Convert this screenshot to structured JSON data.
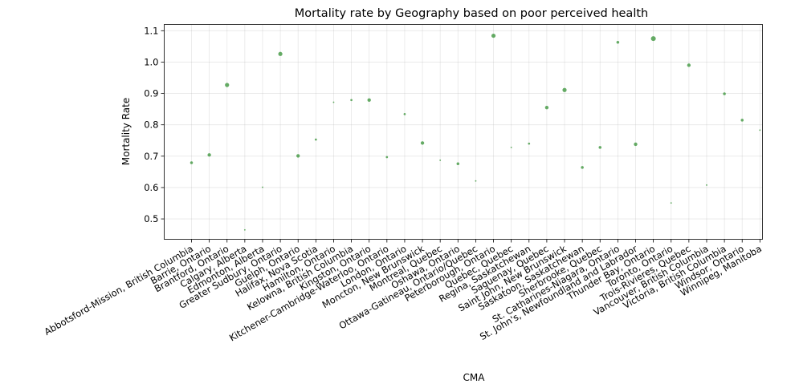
{
  "chart_data": {
    "type": "scatter",
    "title": "Mortality rate by Geography based on poor perceived health",
    "xlabel": "CMA",
    "ylabel": "Mortality Rate",
    "ylim": [
      0.435,
      1.12
    ],
    "yticks": [
      0.5,
      0.6,
      0.7,
      0.8,
      0.9,
      1.0,
      1.1
    ],
    "ytick_labels": [
      "0.5",
      "0.6",
      "0.7",
      "0.8",
      "0.9",
      "1.0",
      "1.1"
    ],
    "grid": true,
    "color": "#4a9c4a",
    "categories": [
      "Abbotsford-Mission, British Columbia",
      "Barrie, Ontario",
      "Brantford, Ontario",
      "Calgary, Alberta",
      "Edmonton, Alberta",
      "Greater Sudbury, Ontario",
      "Guelph, Ontario",
      "Halifax, Nova Scotia",
      "Hamilton, Ontario",
      "Kelowna, British Columbia",
      "Kingston, Ontario",
      "Kitchener-Cambridge-Waterloo, Ontario",
      "London, Ontario",
      "Moncton, New Brunswick",
      "Montreal, Quebec",
      "Oshawa, Ontario",
      "Ottawa-Gatineau, Ontario/Quebec",
      "Peterborough, Ontario",
      "Quebec, Quebec",
      "Regina, Saskatchewan",
      "Saguenay, Quebec",
      "Saint John, New Brunswick",
      "Saskatoon, Saskatchewan",
      "Sherbrooke, Quebec",
      "St. Catharines-Niagara, Ontario",
      "St. John's, Newfoundland and Labrador",
      "Thunder Bay, Ontario",
      "Toronto, Ontario",
      "Trois-Rivieres, Quebec",
      "Vancouver, British Columbia",
      "Victoria, British Columbia",
      "Windsor, Ontario",
      "Winnipeg, Manitoba"
    ],
    "values": [
      0.679,
      0.704,
      0.927,
      0.465,
      0.601,
      1.026,
      0.701,
      0.753,
      0.872,
      0.879,
      0.879,
      0.697,
      0.834,
      0.742,
      0.687,
      0.676,
      0.621,
      1.084,
      0.728,
      0.74,
      0.855,
      0.911,
      0.664,
      0.728,
      1.063,
      0.738,
      1.075,
      0.551,
      0.99,
      0.608,
      0.899,
      0.815,
      0.783
    ],
    "sizes": [
      3,
      4,
      5,
      1,
      1,
      5,
      4,
      2,
      1,
      2,
      4,
      2,
      2,
      4,
      1,
      3,
      1,
      5,
      1,
      2,
      4,
      5,
      3,
      3,
      3,
      4,
      6,
      1,
      4,
      1,
      3,
      3,
      1
    ]
  }
}
